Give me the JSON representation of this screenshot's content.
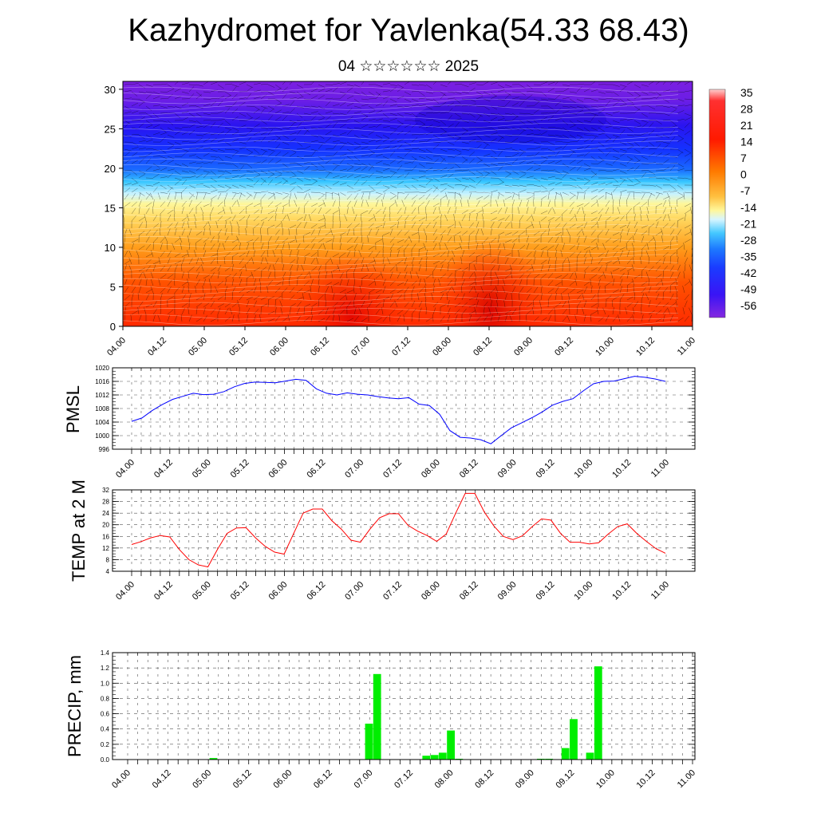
{
  "header": {
    "title": "Kazhydromet for Yavlenka(54.33 68.43)",
    "subtitle": "04 ☆☆☆☆☆☆ 2025"
  },
  "chart_data": [
    {
      "type": "heatmap",
      "name": "vertical-temperature-section",
      "ylim": [
        0,
        31
      ],
      "ytick_labels": [
        "0",
        "5",
        "10",
        "15",
        "20",
        "25",
        "30"
      ],
      "xtick_labels": [
        "04.00",
        "04.12",
        "05.00",
        "05.12",
        "06.00",
        "06.12",
        "07.00",
        "07.12",
        "08.00",
        "08.12",
        "09.00",
        "09.12",
        "10.00",
        "10.12",
        "11.00"
      ],
      "colorbar_labels": [
        "35",
        "28",
        "21",
        "14",
        "7",
        "0",
        "-7",
        "-14",
        "-21",
        "-28",
        "-35",
        "-42",
        "-49",
        "-56"
      ],
      "colors": {
        "warm": "#ff2a00",
        "cool": "#1432ff",
        "cold": "#7b1fe0",
        "neutral": "#fff79a"
      }
    },
    {
      "type": "line",
      "name": "pmsl",
      "ylabel": "PMSL",
      "ylim": [
        996,
        1020
      ],
      "ytick_labels": [
        "996",
        "1000",
        "1004",
        "1008",
        "1012",
        "1016",
        "1020"
      ],
      "xtick_labels": [
        "04.00",
        "04.12",
        "05.00",
        "05.12",
        "06.00",
        "06.12",
        "07.00",
        "07.12",
        "08.00",
        "08.12",
        "09.00",
        "09.12",
        "10.00",
        "10.12",
        "11.00"
      ],
      "color": "#0000ff",
      "values": [
        1004.2,
        1005.2,
        1007.4,
        1009.2,
        1010.7,
        1011.6,
        1012.5,
        1012.1,
        1012.2,
        1013.0,
        1014.4,
        1015.4,
        1015.8,
        1015.7,
        1015.6,
        1016.1,
        1016.6,
        1016.3,
        1013.8,
        1012.5,
        1012.0,
        1012.6,
        1012.2,
        1012.0,
        1011.5,
        1011.1,
        1010.9,
        1011.2,
        1009.3,
        1008.9,
        1006.3,
        1001.5,
        999.5,
        999.3,
        998.8,
        997.6,
        1000.0,
        1002.3,
        1003.8,
        1005.3,
        1007.0,
        1009.0,
        1010.1,
        1010.9,
        1013.2,
        1015.3,
        1016.0,
        1016.1,
        1016.8,
        1017.5,
        1017.2,
        1016.7,
        1016.0
      ]
    },
    {
      "type": "line",
      "name": "temp-2m",
      "ylabel": "TEMP at 2 M",
      "ylim": [
        4,
        32
      ],
      "ytick_labels": [
        "4",
        "8",
        "12",
        "16",
        "20",
        "24",
        "28",
        "32"
      ],
      "xtick_labels": [
        "04.00",
        "04.12",
        "05.00",
        "05.12",
        "06.00",
        "06.12",
        "07.00",
        "07.12",
        "08.00",
        "08.12",
        "09.00",
        "09.12",
        "10.00",
        "10.12",
        "11.00"
      ],
      "color": "#ff0000",
      "values": [
        13.2,
        14.2,
        15.5,
        16.3,
        15.8,
        11.5,
        8.0,
        6.2,
        5.5,
        11.5,
        17.0,
        18.9,
        19.0,
        15.5,
        12.6,
        10.6,
        9.9,
        17.0,
        24.0,
        25.4,
        25.4,
        21.4,
        18.5,
        14.7,
        14.0,
        18.5,
        22.4,
        23.8,
        23.8,
        19.8,
        17.8,
        16.3,
        14.3,
        16.8,
        24.0,
        30.8,
        30.8,
        24.4,
        19.6,
        16.0,
        14.9,
        16.2,
        19.3,
        22.0,
        21.6,
        17.0,
        14.0,
        14.0,
        13.4,
        13.8,
        16.8,
        19.4,
        20.3,
        17.0,
        14.3,
        11.8,
        10.2
      ]
    },
    {
      "type": "bar",
      "name": "precip",
      "ylabel": "PRECIP, mm",
      "ylim": [
        0,
        1.4
      ],
      "ytick_labels": [
        "0.0",
        "0.2",
        "0.4",
        "0.6",
        "0.8",
        "1.0",
        "1.2",
        "1.4"
      ],
      "xtick_labels": [
        "04.00",
        "04.12",
        "05.00",
        "05.12",
        "06.00",
        "06.12",
        "07.00",
        "07.12",
        "08.00",
        "08.12",
        "09.00",
        "09.12",
        "10.00",
        "10.12",
        "11.00"
      ],
      "color": "#00ee00",
      "values": [
        0,
        0,
        0,
        0,
        0,
        0,
        0,
        0,
        0,
        0,
        0.02,
        0,
        0,
        0,
        0,
        0,
        0,
        0,
        0,
        0,
        0,
        0,
        0,
        0,
        0,
        0,
        0,
        0,
        0,
        0.47,
        1.12,
        0,
        0,
        0,
        0,
        0,
        0.05,
        0.06,
        0.09,
        0.38,
        0.01,
        0,
        0,
        0,
        0,
        0,
        0,
        0,
        0,
        0,
        0.01,
        0.01,
        0,
        0.15,
        0.53,
        0,
        0.09,
        1.22,
        0,
        0,
        0,
        0,
        0,
        0,
        0,
        0,
        0,
        0,
        0
      ]
    }
  ]
}
